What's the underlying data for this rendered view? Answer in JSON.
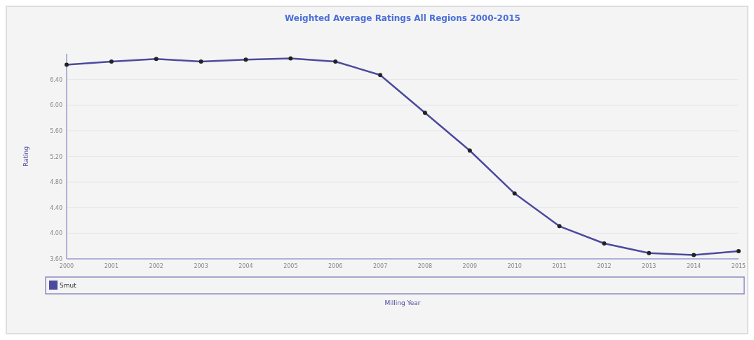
{
  "chart_data": {
    "type": "line",
    "title": "Weighted Average Ratings All Regions 2000-2015",
    "xlabel": "Milling Year",
    "ylabel": "Rating",
    "categories": [
      "2000",
      "2001",
      "2002",
      "2003",
      "2004",
      "2005",
      "2006",
      "2007",
      "2008",
      "2009",
      "2010",
      "2011",
      "2012",
      "2013",
      "2014",
      "2015"
    ],
    "series": [
      {
        "name": "Smut",
        "color": "#4b4a9e",
        "values": [
          6.63,
          6.68,
          6.72,
          6.68,
          6.71,
          6.73,
          6.68,
          6.47,
          5.88,
          5.29,
          4.62,
          4.11,
          3.84,
          3.69,
          3.66,
          3.72
        ]
      }
    ],
    "ylim": [
      3.6,
      6.8
    ],
    "yticks": [
      {
        "value": 3.6,
        "label": "3.60"
      },
      {
        "value": 4,
        "label": "4.00"
      },
      {
        "value": 4.4,
        "label": "4.40"
      },
      {
        "value": 4.8,
        "label": "4.80"
      },
      {
        "value": 5.2,
        "label": "5.20"
      },
      {
        "value": 5.6,
        "label": "5.60"
      },
      {
        "value": 6,
        "label": "6.00"
      },
      {
        "value": 6.4,
        "label": "6.40"
      }
    ],
    "grid": "y",
    "legend": "bottom",
    "marker": "circle",
    "line_style": "solid"
  }
}
